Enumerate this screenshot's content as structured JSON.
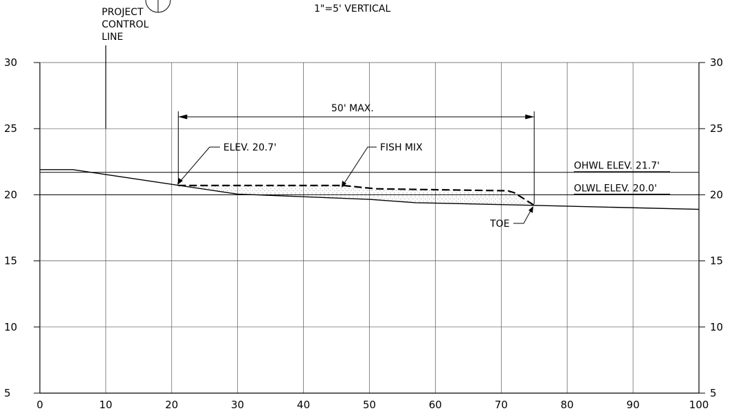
{
  "scale_note": "1\"=5' VERTICAL",
  "control_line_label": [
    "PROJECT",
    "CONTROL",
    "LINE"
  ],
  "dimension_label": "50' MAX.",
  "callouts": {
    "crest_elevation": "ELEV. 20.7'",
    "fill_material": "FISH MIX",
    "toe": "TOE"
  },
  "water_levels": [
    {
      "label": "OHWL ELEV. 21.7'",
      "elev": 21.7
    },
    {
      "label": "OLWL ELEV. 20.0'",
      "elev": 20.0
    }
  ],
  "axes": {
    "x_ticks": [
      "0",
      "10",
      "20",
      "30",
      "40",
      "50",
      "60",
      "70",
      "80",
      "90",
      "100"
    ],
    "y_ticks": [
      "5",
      "10",
      "15",
      "20",
      "25",
      "30"
    ],
    "x_range": [
      0,
      100
    ],
    "y_range": [
      5,
      30
    ]
  },
  "profile": {
    "existing_ground": [
      [
        0,
        21.9
      ],
      [
        5,
        21.9
      ],
      [
        30,
        20.05
      ],
      [
        50,
        19.65
      ],
      [
        57,
        19.4
      ],
      [
        75,
        19.2
      ],
      [
        100,
        18.9
      ]
    ],
    "fish_mix_top": [
      [
        21,
        20.7
      ],
      [
        46,
        20.7
      ],
      [
        51,
        20.45
      ],
      [
        71,
        20.3
      ],
      [
        72,
        20.15
      ],
      [
        75,
        19.2
      ]
    ],
    "fish_mix_dimension_x": [
      21,
      75
    ],
    "control_line_x": 10
  },
  "colors": {
    "line": "#000000",
    "grid": "#555555",
    "fill_dots": "#6b6b6b"
  }
}
